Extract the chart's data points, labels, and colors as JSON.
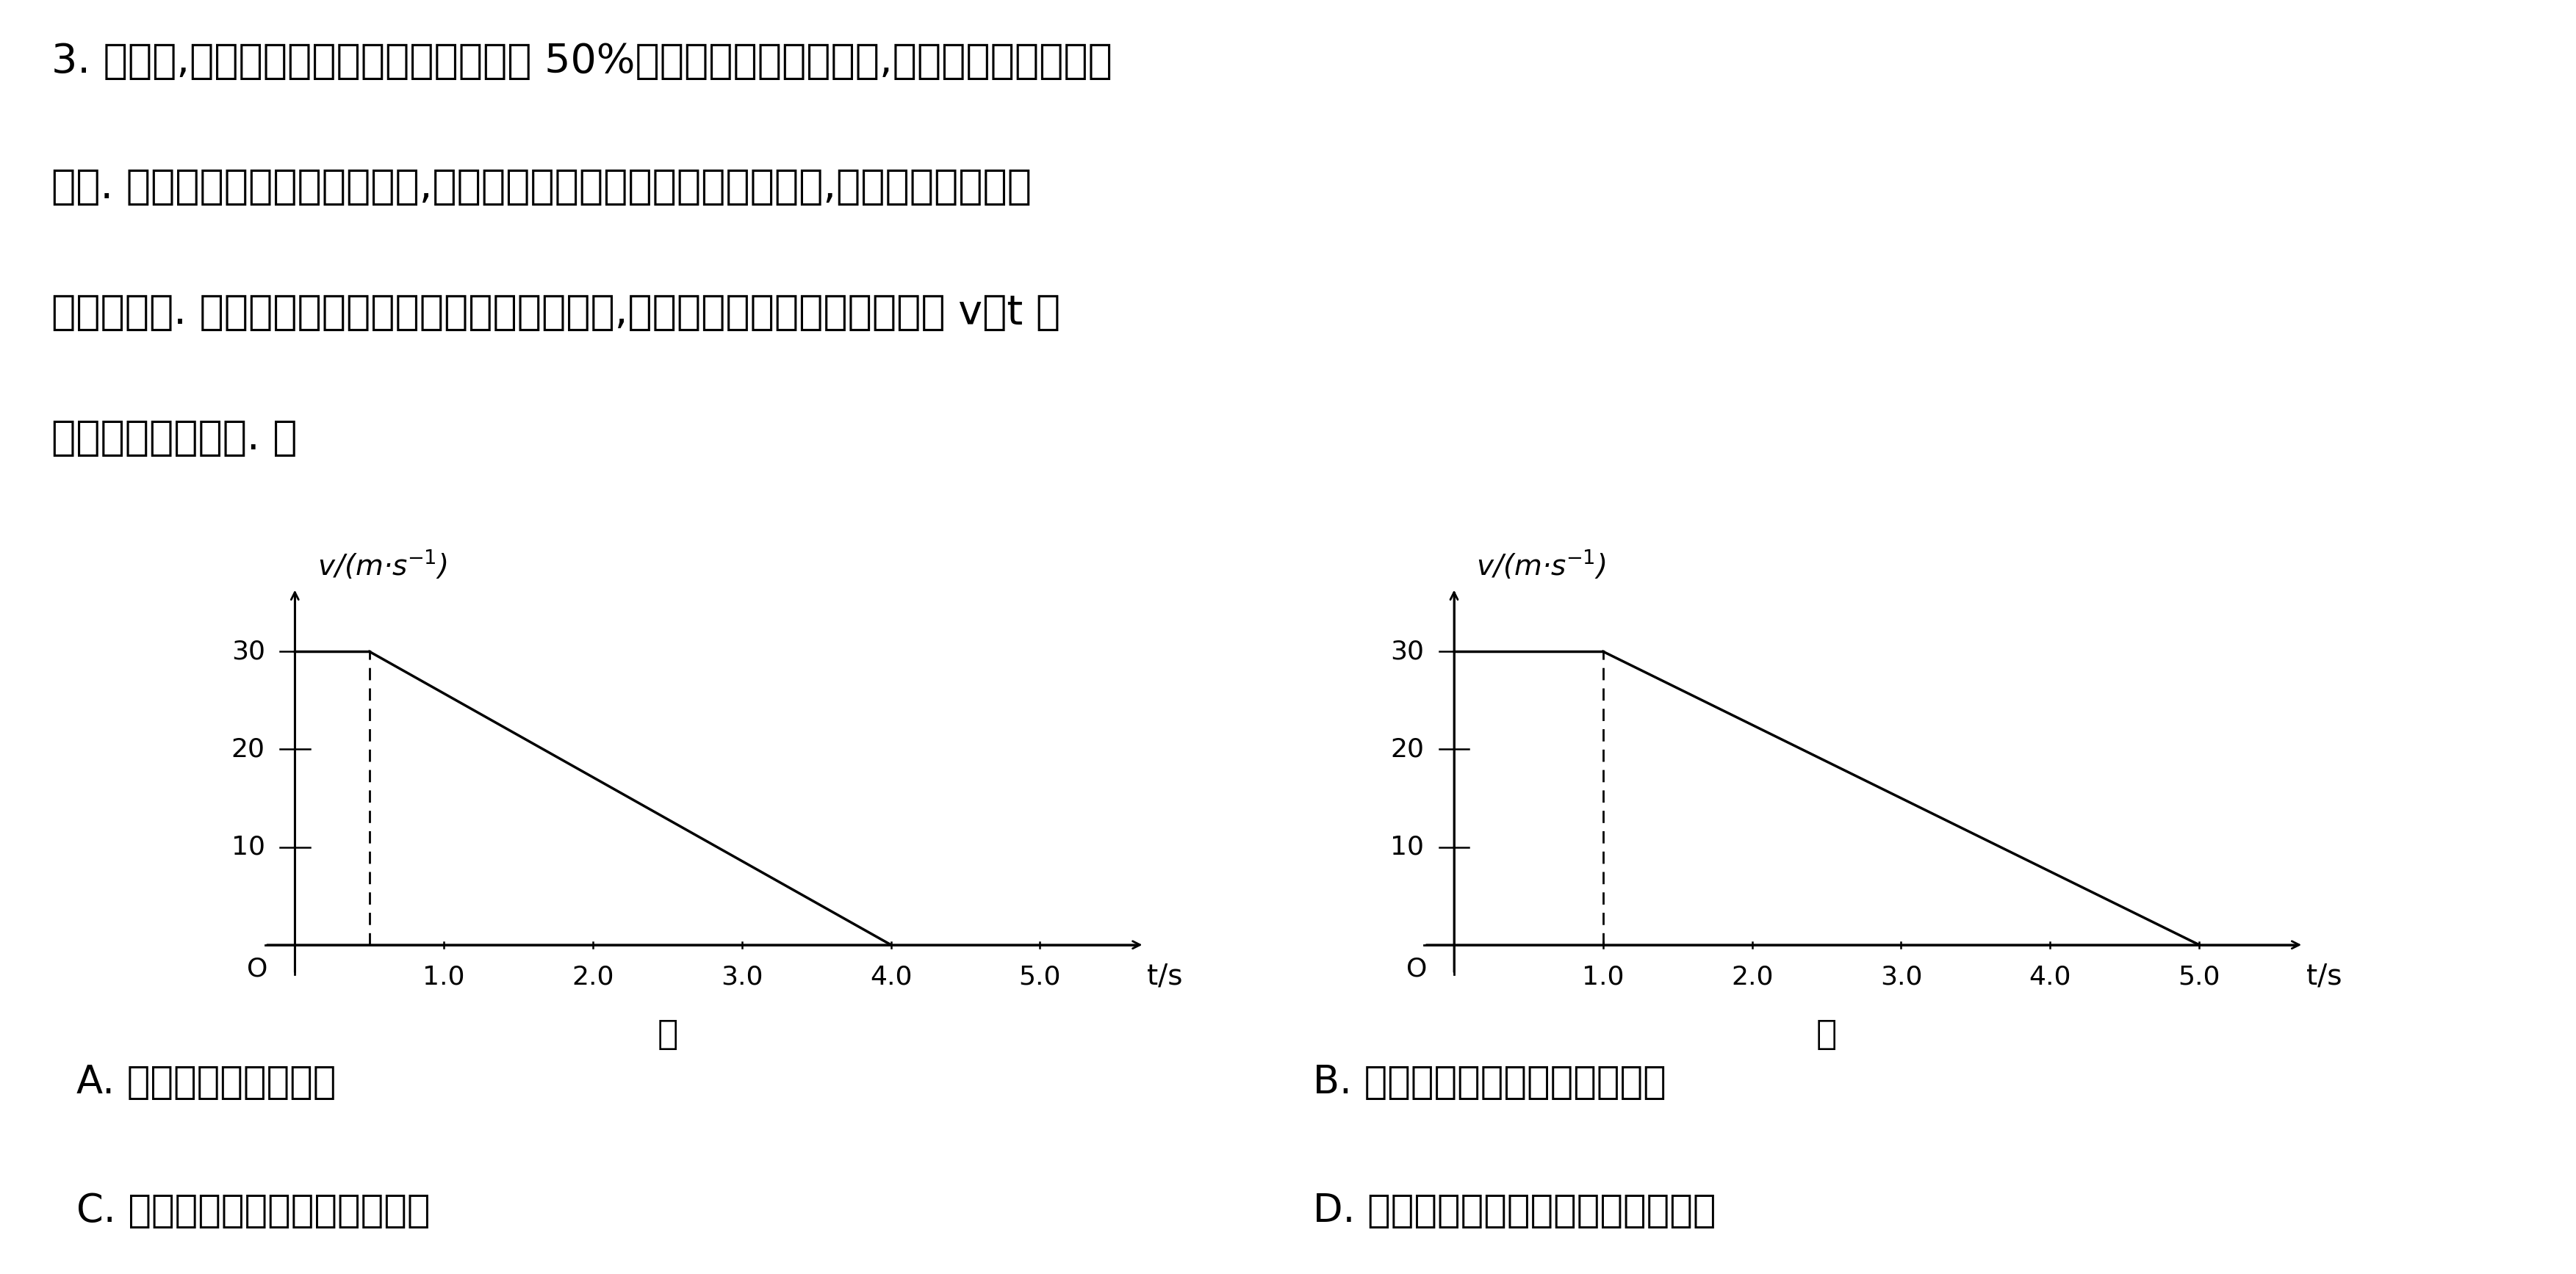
{
  "background_color": "#ffffff",
  "text_color": "#000000",
  "paragraph_lines": [
    "3. 据报道,每年由于交通造成死亡的事故中 50%以上都与酒后驾车有关,酒后驾车的危害触目",
    "惊心. 驾驶员从视觉感知前方危险,到汽车开始制动的时间称为反应时间,酒后驾驶将明显增",
    "加反应时间. 对比某驾驶员正常驾驶和酒后驾驶过程,记录感知前方危险后汽车运动 v－t 图",
    "线如图甲、乙所示. 则"
  ],
  "graph_left": {
    "label": "甲",
    "reaction_time": 0.5,
    "braking_end": 4.0,
    "v_max": 30,
    "x_ticks": [
      1.0,
      2.0,
      3.0,
      4.0,
      5.0
    ],
    "y_ticks": [
      10,
      20,
      30
    ],
    "xlabel": "t/s",
    "ylabel": "v/(m·s⁻¹)"
  },
  "graph_right": {
    "label": "乙",
    "reaction_time": 1.0,
    "braking_end": 5.0,
    "v_max": 30,
    "x_ticks": [
      1.0,
      2.0,
      3.0,
      4.0,
      5.0
    ],
    "y_ticks": [
      10,
      20,
      30
    ],
    "xlabel": "t/s",
    "ylabel": "v/(m·s⁻¹)"
  },
  "options": [
    [
      "A. 图乙对应于正常驾车",
      "B. 全过程酒后驾车的时间比较短"
    ],
    [
      "C. 全过程酒后驾车的位移比较小",
      "D. 全过程酒后驾车的平均速度比较大"
    ]
  ],
  "font_size_text": 40,
  "font_size_axis": 28,
  "font_size_tick": 26,
  "font_size_label": 34,
  "font_size_option": 38,
  "line_gap_in_vt_label": "v－t"
}
